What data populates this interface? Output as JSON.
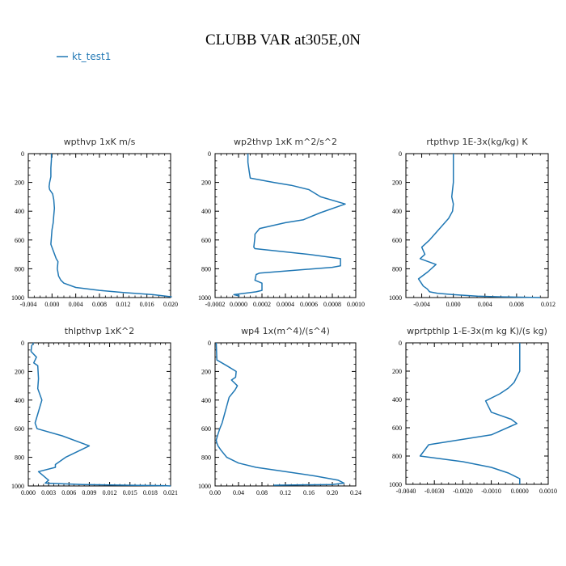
{
  "page": {
    "title": "CLUBB VAR at305E,0N",
    "legend": [
      {
        "label": "kt_test1",
        "color": "#1f77b4"
      }
    ]
  },
  "chart_data": [
    {
      "type": "line",
      "title": "wpthvp  1xK m/s",
      "xlabel": "",
      "ylabel": "",
      "xlim": [
        -0.004,
        0.02
      ],
      "ylim": [
        1000,
        0
      ],
      "xticks": [
        "-0.004",
        "0.000",
        "0.004",
        "0.008",
        "0.012",
        "0.016",
        "0.020"
      ],
      "yticks": [
        "0",
        "200",
        "400",
        "600",
        "800",
        "1000"
      ],
      "grid": false,
      "series": [
        {
          "name": "kt_test1",
          "color": "#1f77b4",
          "x": [
            -0.0001,
            -0.0001,
            -0.0002,
            -0.0002,
            -0.0004,
            -0.0005,
            -0.0004,
            0.0001,
            0.0003,
            0.0004,
            0.0003,
            0.0002,
            0.0,
            -0.0001,
            -0.0002,
            0.0007,
            0.001,
            0.0009,
            0.0011,
            0.0015,
            0.002,
            0.004,
            0.008,
            0.012,
            0.017,
            0.0202
          ],
          "y": [
            0,
            40,
            100,
            160,
            200,
            230,
            250,
            280,
            320,
            380,
            430,
            480,
            530,
            580,
            630,
            730,
            750,
            800,
            850,
            880,
            900,
            930,
            950,
            965,
            980,
            995
          ]
        }
      ]
    },
    {
      "type": "line",
      "title": "wp2thvp  1xK m^2/s^2",
      "xlabel": "",
      "ylabel": "",
      "xlim": [
        -0.0002,
        0.001
      ],
      "ylim": [
        1000,
        0
      ],
      "xticks": [
        "-0.0002",
        "0.0000",
        "0.0002",
        "0.0004",
        "0.0006",
        "0.0008",
        "0.0010"
      ],
      "yticks": [
        "0",
        "200",
        "400",
        "600",
        "800",
        "1000"
      ],
      "grid": false,
      "series": [
        {
          "name": "kt_test1",
          "color": "#1f77b4",
          "x": [
            8e-05,
            8e-05,
            9e-05,
            0.0001,
            0.0003,
            0.00045,
            0.0006,
            0.0007,
            0.00091,
            0.0007,
            0.00055,
            0.0004,
            0.00018,
            0.00014,
            0.00014,
            0.00013,
            0.00014,
            0.0006,
            0.00087,
            0.00087,
            0.0008,
            0.00018,
            0.00015,
            0.00014,
            0.0002,
            0.0002,
            0.00015,
            5e-05,
            -4e-05,
            1e-05
          ],
          "y": [
            0,
            60,
            120,
            170,
            200,
            220,
            250,
            300,
            350,
            410,
            460,
            480,
            520,
            560,
            580,
            650,
            660,
            700,
            730,
            780,
            790,
            830,
            840,
            880,
            900,
            950,
            960,
            970,
            980,
            990
          ]
        }
      ]
    },
    {
      "type": "line",
      "title": "rtpthvp  1E-3x(kg/kg) K",
      "xlabel": "",
      "ylabel": "",
      "xlim": [
        -0.006,
        0.012
      ],
      "ylim": [
        1000,
        0
      ],
      "xticks": [
        "-0.004",
        "0.000",
        "0.004",
        "0.008",
        "0.012"
      ],
      "yticks": [
        "0",
        "200",
        "400",
        "600",
        "800",
        "1000"
      ],
      "grid": false,
      "series": [
        {
          "name": "kt_test1",
          "color": "#1f77b4",
          "x": [
            0.0,
            0.0,
            0.0,
            0.0,
            -0.0001,
            -0.0002,
            0.0,
            -0.0001,
            -0.0006,
            -0.003,
            -0.004,
            -0.0036,
            -0.0042,
            -0.0022,
            -0.0032,
            -0.0044,
            -0.0038,
            -0.0033,
            -0.003,
            -0.002,
            0.0,
            0.003,
            0.006,
            0.009,
            0.011
          ],
          "y": [
            0,
            50,
            100,
            200,
            250,
            300,
            350,
            400,
            450,
            600,
            650,
            700,
            730,
            770,
            820,
            870,
            920,
            940,
            960,
            970,
            980,
            990,
            995,
            998,
            1000
          ]
        }
      ]
    },
    {
      "type": "line",
      "title": "thlpthvp  1xK^2",
      "xlabel": "",
      "ylabel": "",
      "xlim": [
        0.0,
        0.021
      ],
      "ylim": [
        1000,
        0
      ],
      "xticks": [
        "0.000",
        "0.003",
        "0.006",
        "0.009",
        "0.012",
        "0.015",
        "0.018",
        "0.021"
      ],
      "yticks": [
        "0",
        "200",
        "400",
        "600",
        "800",
        "1000"
      ],
      "grid": false,
      "series": [
        {
          "name": "kt_test1",
          "color": "#1f77b4",
          "x": [
            0.0008,
            0.0005,
            0.0004,
            0.0012,
            0.0008,
            0.0014,
            0.0015,
            0.0014,
            0.002,
            0.0015,
            0.001,
            0.0013,
            0.005,
            0.009,
            0.0055,
            0.004,
            0.004,
            0.0015,
            0.0025,
            0.003,
            0.0025,
            0.008,
            0.015,
            0.02,
            0.021
          ],
          "y": [
            0,
            20,
            60,
            100,
            140,
            160,
            250,
            320,
            400,
            480,
            560,
            600,
            650,
            720,
            800,
            850,
            870,
            900,
            940,
            960,
            980,
            990,
            995,
            998,
            1000
          ]
        }
      ]
    },
    {
      "type": "line",
      "title": "wp4  1x(m^4)/(s^4)",
      "xlabel": "",
      "ylabel": "",
      "xlim": [
        0.0,
        0.24
      ],
      "ylim": [
        1000,
        0
      ],
      "xticks": [
        "0.00",
        "0.04",
        "0.08",
        "0.12",
        "0.16",
        "0.20",
        "0.24"
      ],
      "yticks": [
        "0",
        "200",
        "400",
        "600",
        "800",
        "1000"
      ],
      "grid": false,
      "series": [
        {
          "name": "kt_test1",
          "color": "#1f77b4",
          "x": [
            0.002,
            0.003,
            0.02,
            0.036,
            0.035,
            0.028,
            0.038,
            0.034,
            0.024,
            0.02,
            0.016,
            0.012,
            0.008,
            0.004,
            0.002,
            0.003,
            0.005,
            0.01,
            0.02,
            0.04,
            0.07,
            0.12,
            0.17,
            0.21,
            0.22,
            0.2,
            0.1
          ],
          "y": [
            0,
            120,
            160,
            200,
            240,
            260,
            300,
            330,
            380,
            440,
            500,
            560,
            600,
            650,
            680,
            700,
            720,
            750,
            800,
            840,
            870,
            900,
            930,
            960,
            980,
            990,
            995
          ]
        }
      ]
    },
    {
      "type": "line",
      "title": "wprtpthlp  1-E-3x(m kg K)/(s kg)",
      "xlabel": "",
      "ylabel": "",
      "xlim": [
        -0.004,
        0.001
      ],
      "ylim": [
        1000,
        0
      ],
      "xticks": [
        "-0.0040",
        "-0.0030",
        "-0.0020",
        "-0.0010",
        "0.0000",
        "0.0010"
      ],
      "yticks": [
        "0",
        "200",
        "400",
        "600",
        "800",
        "1000"
      ],
      "grid": false,
      "series": [
        {
          "name": "kt_test1",
          "color": "#1f77b4",
          "x": [
            0.0,
            0.0,
            0.0,
            -0.0001,
            -0.0002,
            -0.0004,
            -0.0007,
            -0.0012,
            -0.0011,
            -0.001,
            -0.0003,
            -0.0001,
            -0.001,
            -0.0032,
            -0.0035,
            -0.002,
            -0.001,
            -0.0004,
            0.0,
            0.0
          ],
          "y": [
            0,
            100,
            200,
            240,
            280,
            320,
            360,
            410,
            450,
            490,
            540,
            570,
            650,
            720,
            800,
            840,
            880,
            920,
            960,
            1000
          ]
        }
      ]
    }
  ]
}
